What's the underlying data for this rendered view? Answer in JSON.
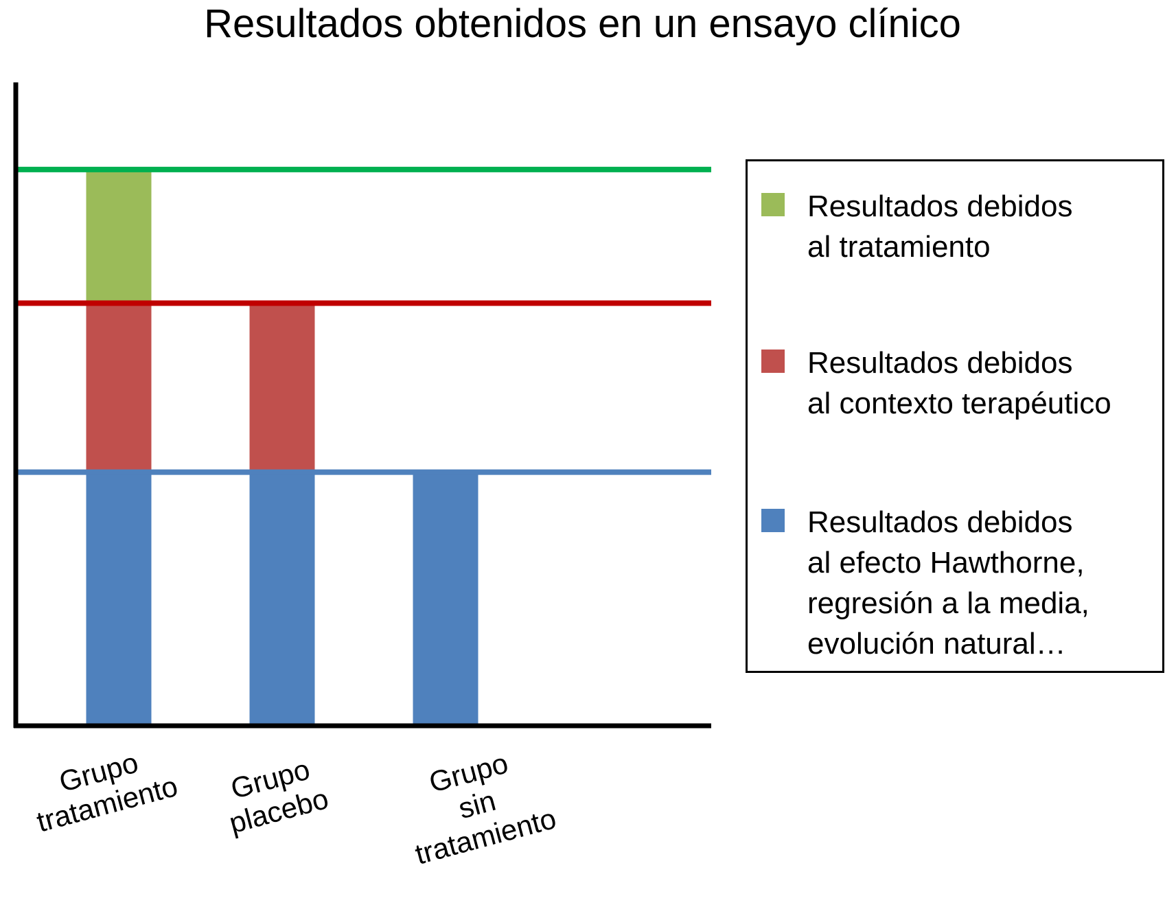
{
  "chart_data": {
    "type": "bar",
    "title": "Resultados obtenidos en un ensayo clínico",
    "categories": [
      "Grupo\ntratamiento",
      "Grupo\nplacebo",
      "Grupo\nsin\ntratamiento"
    ],
    "series": [
      {
        "name": "Resultados debidos\nal efecto Hawthorne,\nregresión a la media,\nevolución natural…",
        "color": "#4f81bd",
        "values": [
          1.0,
          1.0,
          1.0
        ]
      },
      {
        "name": "Resultados debidos\nal contexto terapéutico",
        "color": "#c0504d",
        "values": [
          0.67,
          0.67,
          0
        ]
      },
      {
        "name": "Resultados debidos\nal tratamiento",
        "color": "#9bbb59",
        "values": [
          0.53,
          0,
          0
        ]
      }
    ],
    "reference_lines": [
      {
        "value": 2.2,
        "color": "#00b050"
      },
      {
        "value": 1.67,
        "color": "#c00000"
      },
      {
        "value": 1.0,
        "color": "#4f81bd"
      }
    ],
    "stacked": true,
    "ylim": [
      0,
      2.45
    ],
    "legend_position": "right",
    "grid": false
  }
}
